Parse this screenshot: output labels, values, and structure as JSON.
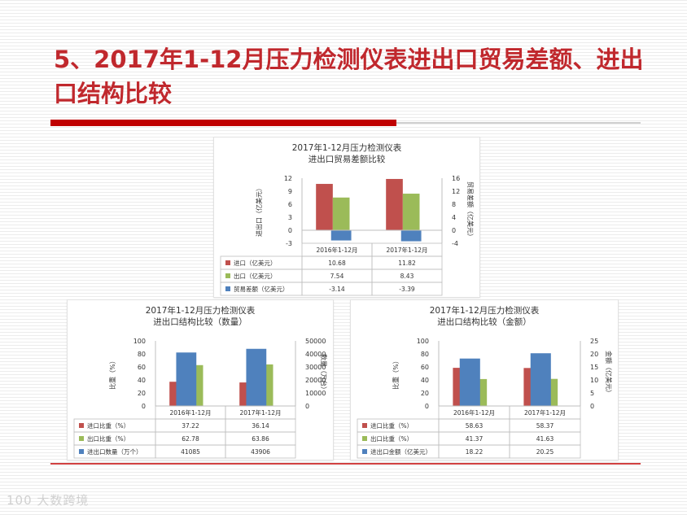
{
  "slide": {
    "title": "5、2017年1-12月压力检测仪表进出口贸易差额、进出口结构比较"
  },
  "watermark": "100 大数跨境",
  "colors": {
    "red": "#c0504d",
    "green": "#9bbb59",
    "blue": "#4f81bd",
    "accent": "#c00000"
  },
  "chart_data": [
    {
      "type": "bar",
      "title": "2017年1-12月压力检测仪表\n进出口贸易差额比较",
      "categories": [
        "2016年1-12月",
        "2017年1-12月"
      ],
      "ylabel": "进出口（亿美元）",
      "y2label": "贸易差额（亿美元）",
      "ylim": [
        -3,
        12
      ],
      "yticks": [
        "12",
        "9",
        "6",
        "3",
        "0",
        "-3"
      ],
      "y2lim": [
        -4,
        16
      ],
      "y2ticks": [
        "16",
        "12",
        "8",
        "4",
        "0",
        "-4"
      ],
      "series": [
        {
          "name": "进口（亿美元）",
          "values": [
            10.68,
            11.82
          ],
          "display": [
            "10.68",
            "11.82"
          ],
          "color": "#c0504d",
          "axis": "left"
        },
        {
          "name": "出口（亿美元）",
          "values": [
            7.54,
            8.43
          ],
          "display": [
            "7.54",
            "8.43"
          ],
          "color": "#9bbb59",
          "axis": "left"
        },
        {
          "name": "贸易差额（亿美元）",
          "values": [
            -3.14,
            -3.39
          ],
          "display": [
            "-3.14",
            "-3.39"
          ],
          "color": "#4f81bd",
          "axis": "right"
        }
      ]
    },
    {
      "type": "bar",
      "title": "2017年1-12月压力检测仪表\n进出口结构比较（数量）",
      "categories": [
        "2016年1-12月",
        "2017年1-12月"
      ],
      "ylabel": "比重（%）",
      "y2label": "数量（万台）",
      "ylim": [
        0,
        100
      ],
      "yticks": [
        "100",
        "80",
        "60",
        "40",
        "20",
        "0"
      ],
      "y2lim": [
        0,
        50000
      ],
      "y2ticks": [
        "50000",
        "40000",
        "30000",
        "20000",
        "10000",
        "0"
      ],
      "series": [
        {
          "name": "进口比重（%）",
          "values": [
            37.22,
            36.14
          ],
          "display": [
            "37.22",
            "36.14"
          ],
          "color": "#c0504d",
          "axis": "left"
        },
        {
          "name": "出口比重（%）",
          "values": [
            62.78,
            63.86
          ],
          "display": [
            "62.78",
            "63.86"
          ],
          "color": "#9bbb59",
          "axis": "left"
        },
        {
          "name": "进出口数量（万个）",
          "values": [
            41085,
            43906
          ],
          "display": [
            "41085",
            "43906"
          ],
          "color": "#4f81bd",
          "axis": "right"
        }
      ]
    },
    {
      "type": "bar",
      "title": "2017年1-12月压力检测仪表\n进出口结构比较（金额）",
      "categories": [
        "2016年1-12月",
        "2017年1-12月"
      ],
      "ylabel": "比重（%）",
      "y2label": "金额（亿美元）",
      "ylim": [
        0,
        100
      ],
      "yticks": [
        "100",
        "80",
        "60",
        "40",
        "20",
        "0"
      ],
      "y2lim": [
        0,
        25
      ],
      "y2ticks": [
        "25",
        "20",
        "15",
        "10",
        "5",
        "0"
      ],
      "series": [
        {
          "name": "进口比重（%）",
          "values": [
            58.63,
            58.37
          ],
          "display": [
            "58.63",
            "58.37"
          ],
          "color": "#c0504d",
          "axis": "left"
        },
        {
          "name": "出口比重（%）",
          "values": [
            41.37,
            41.63
          ],
          "display": [
            "41.37",
            "41.63"
          ],
          "color": "#9bbb59",
          "axis": "left"
        },
        {
          "name": "进出口金额（亿美元）",
          "values": [
            18.22,
            20.25
          ],
          "display": [
            "18.22",
            "20.25"
          ],
          "color": "#4f81bd",
          "axis": "right"
        }
      ]
    }
  ]
}
